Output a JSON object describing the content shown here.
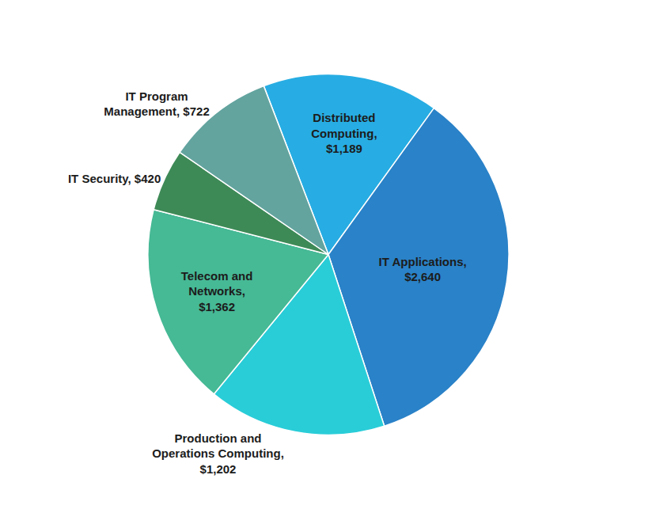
{
  "chart_data": {
    "type": "pie",
    "categories": [
      "Distributed Computing",
      "IT Applications",
      "Production and Operations Computing",
      "Telecom and Networks",
      "IT Security",
      "IT Program Management"
    ],
    "values": [
      1189,
      2640,
      1202,
      1362,
      420,
      722
    ],
    "value_labels": [
      "Distributed Computing, $1,189",
      "IT Applications, $2,640",
      "Production and Operations Computing, $1,202",
      "Telecom and Networks, $1,362",
      "IT Security, $420",
      "IT Program Management, $722"
    ],
    "colors": [
      "#27ade3",
      "#2a82c8",
      "#29cdd8",
      "#46b995",
      "#3e8a57",
      "#63a49f"
    ],
    "data_labels": true
  }
}
